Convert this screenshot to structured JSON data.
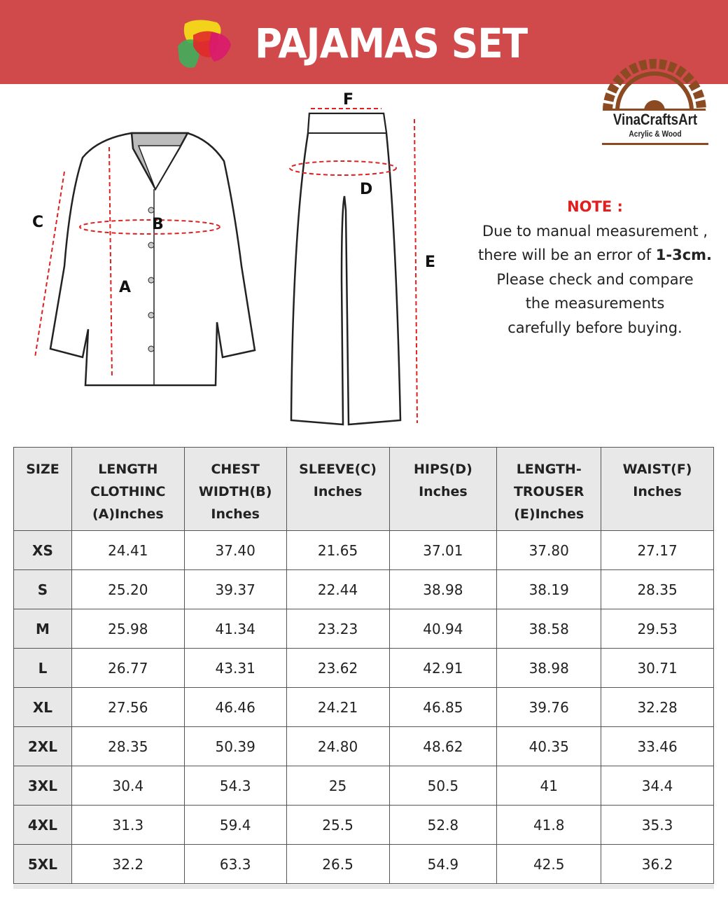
{
  "header": {
    "title": "PAJAMAS SET",
    "bg_color": "#d04a4c"
  },
  "brand": {
    "name": "VinaCraftsArt",
    "tagline": "Acrylic & Wood"
  },
  "diagram_labels": {
    "a": "A",
    "b": "B",
    "c": "C",
    "d": "D",
    "e": "E",
    "f": "F"
  },
  "note": {
    "title": "NOTE :",
    "line1": "Due to manual measurement ,",
    "line2_prefix": "there will be an error of ",
    "line2_bold": "1-3cm.",
    "line3": "Please check and compare",
    "line4": "the measurements",
    "line5": "carefully before buying."
  },
  "table": {
    "headers": [
      [
        "SIZE"
      ],
      [
        "LENGTH",
        "CLOTHINC",
        "(A)Inches"
      ],
      [
        "CHEST",
        "WIDTH(B)",
        "Inches"
      ],
      [
        "SLEEVE(C)",
        "Inches"
      ],
      [
        "HIPS(D)",
        "Inches"
      ],
      [
        "LENGTH-",
        "TROUSER",
        "(E)Inches"
      ],
      [
        "WAIST(F)",
        "Inches"
      ]
    ],
    "rows": [
      [
        "XS",
        "24.41",
        "37.40",
        "21.65",
        "37.01",
        "37.80",
        "27.17"
      ],
      [
        "S",
        "25.20",
        "39.37",
        "22.44",
        "38.98",
        "38.19",
        "28.35"
      ],
      [
        "M",
        "25.98",
        "41.34",
        "23.23",
        "40.94",
        "38.58",
        "29.53"
      ],
      [
        "L",
        "26.77",
        "43.31",
        "23.62",
        "42.91",
        "38.98",
        "30.71"
      ],
      [
        "XL",
        "27.56",
        "46.46",
        "24.21",
        "46.85",
        "39.76",
        "32.28"
      ],
      [
        "2XL",
        "28.35",
        "50.39",
        "24.80",
        "48.62",
        "40.35",
        "33.46"
      ],
      [
        "3XL",
        "30.4",
        "54.3",
        "25",
        "50.5",
        "41",
        "34.4"
      ],
      [
        "4XL",
        "31.3",
        "59.4",
        "25.5",
        "52.8",
        "41.8",
        "35.3"
      ],
      [
        "5XL",
        "32.2",
        "63.3",
        "26.5",
        "54.9",
        "42.5",
        "36.2"
      ]
    ]
  }
}
